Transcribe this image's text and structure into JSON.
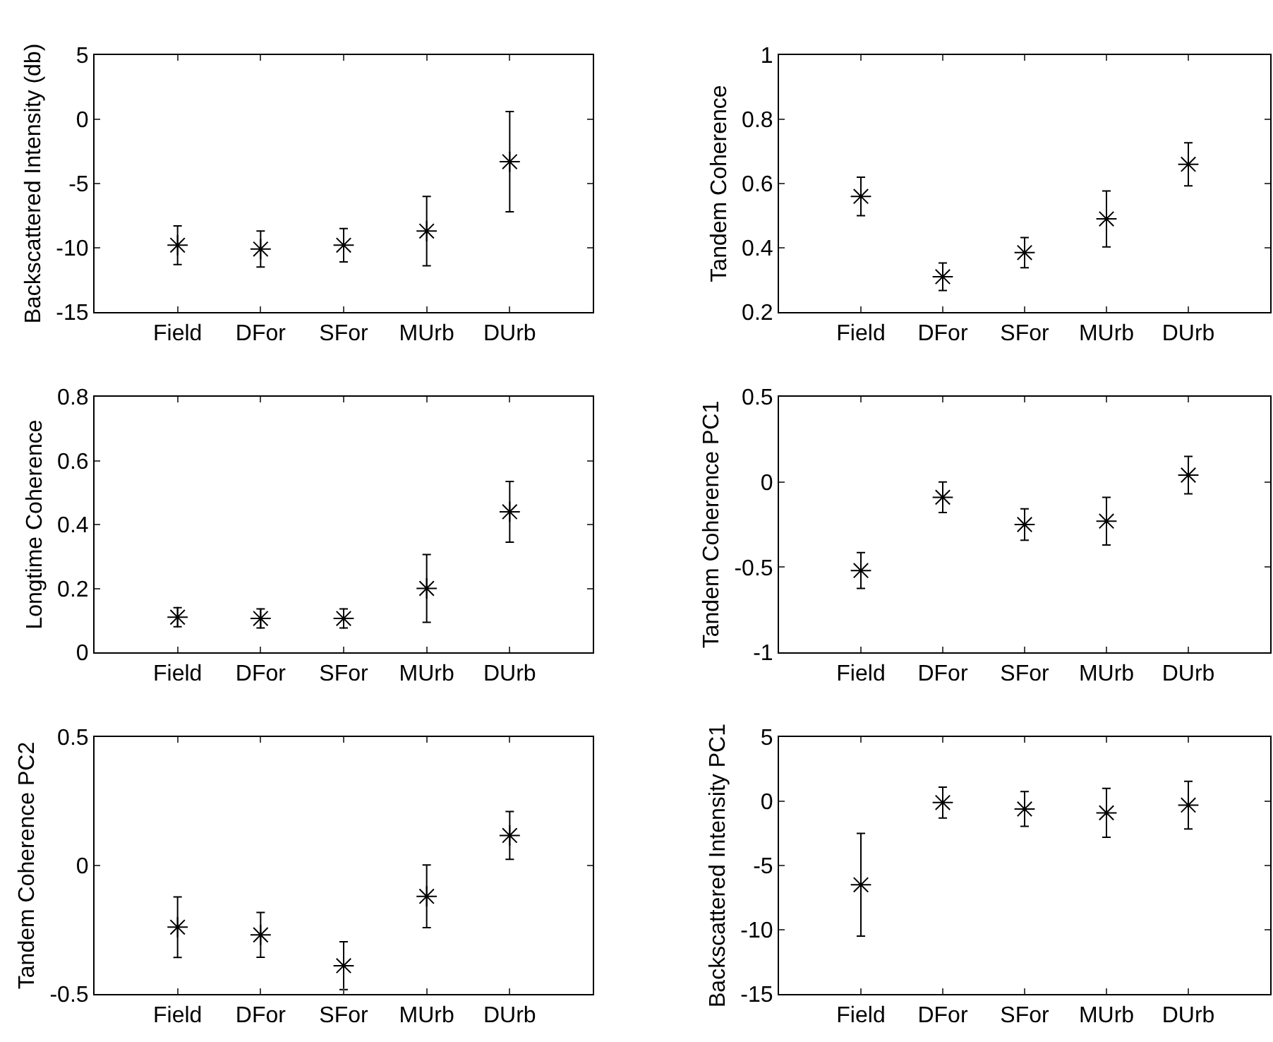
{
  "chart_data": [
    {
      "type": "scatter",
      "categories": [
        "Field",
        "DFor",
        "SFor",
        "MUrb",
        "DUrb"
      ],
      "ylabel": "Backscattered Intensity (db)",
      "values": [
        -9.8,
        -10.1,
        -9.8,
        -8.7,
        -3.3
      ],
      "errors": [
        1.5,
        1.4,
        1.3,
        2.7,
        3.9
      ],
      "color": "#000000",
      "marker": "cross",
      "ylim": [
        -15,
        5
      ],
      "yticks": [
        -15,
        -10,
        -5,
        0,
        5
      ]
    },
    {
      "type": "scatter",
      "categories": [
        "Field",
        "DFor",
        "SFor",
        "MUrb",
        "DUrb"
      ],
      "ylabel": "Tandem Coherence",
      "values": [
        0.56,
        0.31,
        0.385,
        0.49,
        0.66
      ],
      "errors": [
        0.06,
        0.043,
        0.047,
        0.087,
        0.067
      ],
      "color": "#000000",
      "marker": "cross",
      "ylim": [
        0.2,
        1
      ],
      "yticks": [
        0.2,
        0.4,
        0.6,
        0.8,
        1
      ]
    },
    {
      "type": "scatter",
      "categories": [
        "Field",
        "DFor",
        "SFor",
        "MUrb",
        "DUrb"
      ],
      "ylabel": "Longtime Coherence",
      "values": [
        0.11,
        0.106,
        0.106,
        0.2,
        0.44
      ],
      "errors": [
        0.03,
        0.03,
        0.03,
        0.106,
        0.095
      ],
      "color": "#000000",
      "marker": "cross",
      "ylim": [
        0,
        0.8
      ],
      "yticks": [
        0,
        0.2,
        0.4,
        0.6,
        0.8
      ]
    },
    {
      "type": "scatter",
      "categories": [
        "Field",
        "DFor",
        "SFor",
        "MUrb",
        "DUrb"
      ],
      "ylabel": "Tandem Coherence PC1",
      "values": [
        -0.52,
        -0.09,
        -0.25,
        -0.23,
        0.04
      ],
      "errors": [
        0.105,
        0.09,
        0.092,
        0.14,
        0.11
      ],
      "color": "#000000",
      "marker": "cross",
      "ylim": [
        -1,
        0.5
      ],
      "yticks": [
        -1,
        -0.5,
        0,
        0.5
      ]
    },
    {
      "type": "scatter",
      "categories": [
        "Field",
        "DFor",
        "SFor",
        "MUrb",
        "DUrb"
      ],
      "ylabel": "Tandem Coherence PC2",
      "values": [
        -0.24,
        -0.27,
        -0.39,
        -0.12,
        0.117
      ],
      "errors": [
        0.118,
        0.087,
        0.093,
        0.122,
        0.093
      ],
      "color": "#000000",
      "marker": "cross",
      "ylim": [
        -0.5,
        0.5
      ],
      "yticks": [
        -0.5,
        0,
        0.5
      ]
    },
    {
      "type": "scatter",
      "categories": [
        "Field",
        "DFor",
        "SFor",
        "MUrb",
        "DUrb"
      ],
      "ylabel": "Backscattered Intensity PC1",
      "values": [
        -6.5,
        -0.1,
        -0.6,
        -0.9,
        -0.3
      ],
      "errors": [
        4,
        1.2,
        1.35,
        1.9,
        1.85
      ],
      "color": "#000000",
      "marker": "cross",
      "ylim": [
        -15,
        5
      ],
      "yticks": [
        -15,
        -10,
        -5,
        0,
        5
      ]
    }
  ]
}
